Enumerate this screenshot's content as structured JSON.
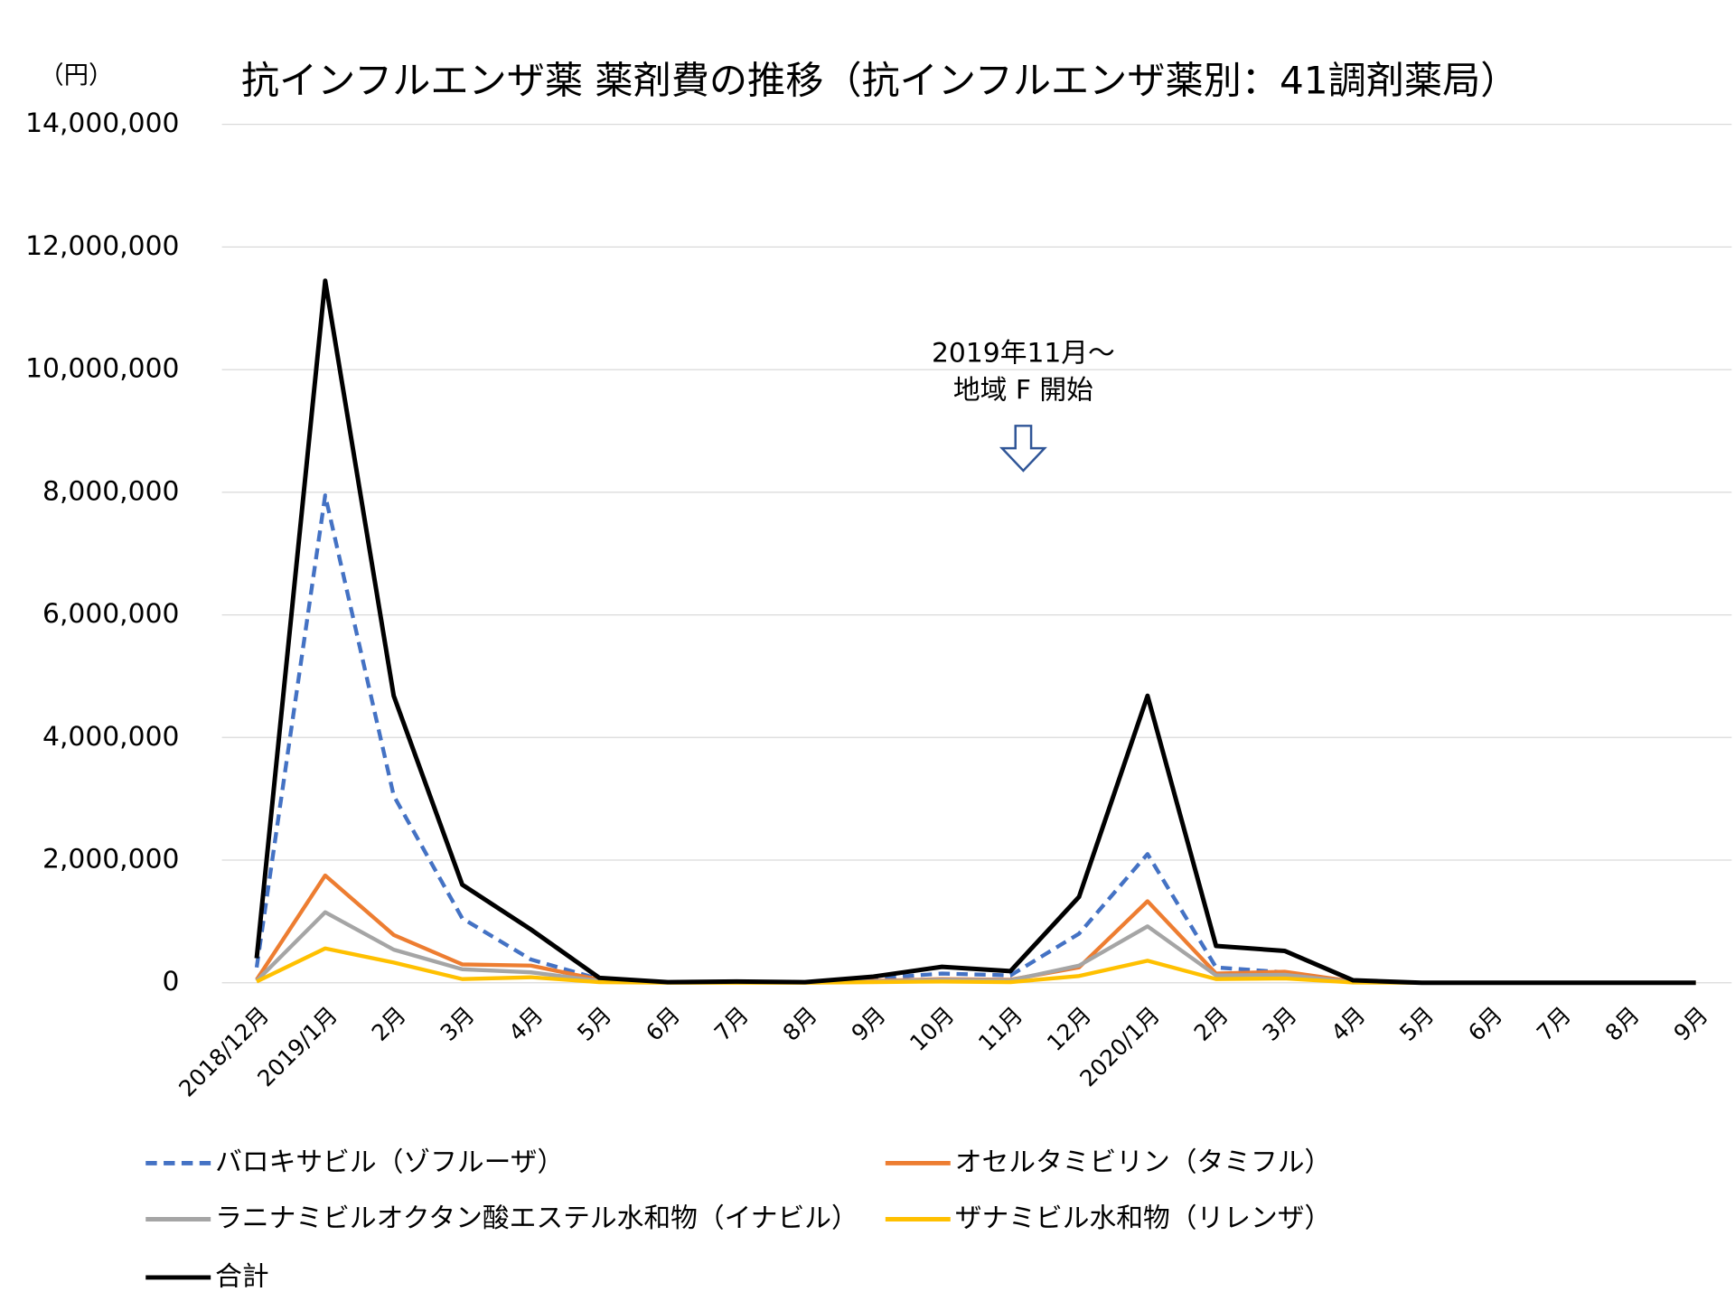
{
  "chart_data": {
    "type": "line",
    "title": "抗インフルエンザ薬 薬剤費の推移（抗インフルエンザ薬別：41調剤薬局）",
    "y_label": "（円）",
    "annotation": [
      "2019年11月～",
      "地域 F 開始"
    ],
    "categories": [
      "2018/12月",
      "2019/1月",
      "2月",
      "3月",
      "4月",
      "5月",
      "6月",
      "7月",
      "8月",
      "9月",
      "10月",
      "11月",
      "12月",
      "2020/1月",
      "2月",
      "3月",
      "4月",
      "5月",
      "6月",
      "7月",
      "8月",
      "9月"
    ],
    "series": [
      {
        "name": "バロキサビル（ゾフルーザ）",
        "color": "#4472c4",
        "dashed": true,
        "values": [
          250000,
          7950000,
          3050000,
          1050000,
          380000,
          60000,
          5000,
          10000,
          5000,
          70000,
          150000,
          120000,
          800000,
          2100000,
          250000,
          170000,
          20000,
          0,
          0,
          0,
          0,
          0
        ]
      },
      {
        "name": "オセルタミビリン（タミフル）",
        "color": "#ed7d31",
        "values": [
          50000,
          1750000,
          780000,
          300000,
          280000,
          50000,
          5000,
          5000,
          0,
          30000,
          60000,
          50000,
          250000,
          1330000,
          150000,
          180000,
          20000,
          0,
          0,
          0,
          0,
          0
        ]
      },
      {
        "name": "ラニナミビルオクタン酸エステル水和物（イナビル）",
        "color": "#a5a5a5",
        "values": [
          30000,
          1150000,
          540000,
          220000,
          170000,
          30000,
          0,
          0,
          0,
          20000,
          50000,
          40000,
          280000,
          920000,
          120000,
          130000,
          10000,
          0,
          0,
          0,
          0,
          0
        ]
      },
      {
        "name": "ザナミビル水和物（リレンザ）",
        "color": "#ffc000",
        "values": [
          20000,
          560000,
          330000,
          60000,
          90000,
          10000,
          0,
          0,
          0,
          10000,
          20000,
          10000,
          110000,
          360000,
          60000,
          70000,
          5000,
          0,
          0,
          0,
          0,
          0
        ]
      },
      {
        "name": "合計",
        "color": "#000000",
        "values": [
          400000,
          11450000,
          4680000,
          1600000,
          870000,
          80000,
          10000,
          20000,
          10000,
          100000,
          260000,
          190000,
          1400000,
          4680000,
          600000,
          520000,
          40000,
          0,
          0,
          0,
          0,
          0
        ]
      }
    ],
    "ylim": [
      0,
      14000000
    ],
    "yticks": [
      0,
      {
        "value": 2000000,
        "label": "2,000,000"
      },
      {
        "value": 4000000,
        "label": "4,000,000"
      },
      {
        "value": 6000000,
        "label": "6,000,000"
      },
      {
        "value": 8000000,
        "label": "8,000,000"
      },
      {
        "value": 10000000,
        "label": "10,000,000"
      },
      {
        "value": 12000000,
        "label": "12,000,000"
      },
      {
        "value": 14000000,
        "label": "14,000,000"
      }
    ],
    "grid": true,
    "legend": "bottom"
  }
}
